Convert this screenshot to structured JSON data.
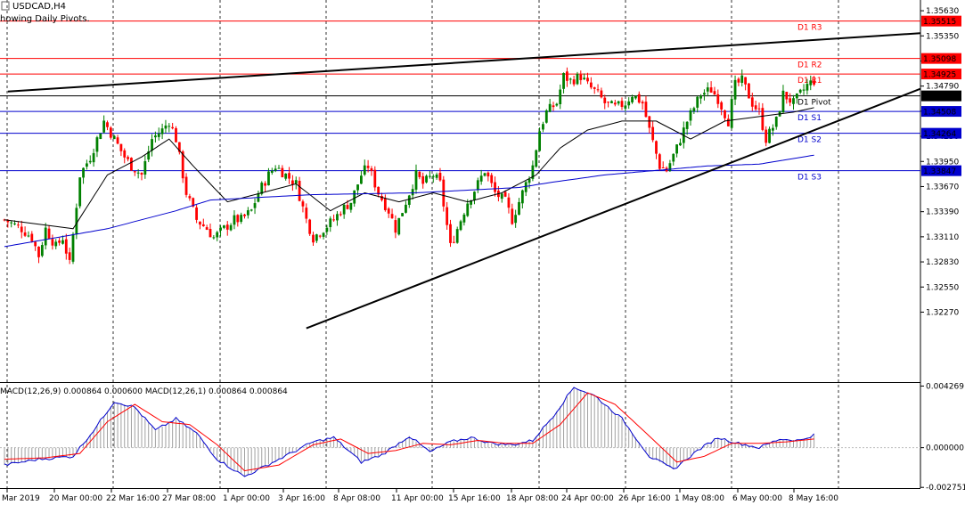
{
  "window": {
    "symbol_label": "USDCAD,H4",
    "indicator_note": "howing Daily Pivots."
  },
  "colors": {
    "bull": "#008000",
    "bear": "#ff0000",
    "resistance": "#ff0000",
    "support": "#0000cd",
    "pivot": "#000000",
    "ma_fast": "#000000",
    "ma_slow": "#0000cd",
    "macd_line": "#0000cd",
    "signal_line": "#ff0000",
    "histogram": "#a0a0a0",
    "trendline": "#000000"
  },
  "chart_data": [
    {
      "type": "candlestick",
      "title": "USDCAD,H4",
      "ylim": [
        1.315,
        1.3573
      ],
      "y_ticks": [
        "1.35630",
        "1.35350",
        "1.35070",
        "1.34790",
        "1.34510",
        "1.34230",
        "1.33950",
        "1.33670",
        "1.33390",
        "1.33110",
        "1.32830",
        "1.32550",
        "1.32270"
      ],
      "x_ticks": [
        "Mar 2019",
        "20 Mar 00:00",
        "22 Mar 16:00",
        "27 Mar 08:00",
        "1 Apr 00:00",
        "3 Apr 16:00",
        "8 Apr 08:00",
        "11 Apr 00:00",
        "15 Apr 16:00",
        "18 Apr 08:00",
        "24 Apr 00:00",
        "26 Apr 16:00",
        "1 May 08:00",
        "6 May 00:00",
        "8 May 16:00"
      ],
      "pivot_levels": [
        {
          "name": "D1 R3",
          "value": 1.35515,
          "label": "1.35515",
          "kind": "resistance"
        },
        {
          "name": "D1 R2",
          "value": 1.35098,
          "label": "1.35098",
          "kind": "resistance"
        },
        {
          "name": "D1 R1",
          "value": 1.34925,
          "label": "1.34925",
          "kind": "resistance"
        },
        {
          "name": "D1 Pivot",
          "value": 1.34681,
          "label": "1.34681",
          "kind": "pivot"
        },
        {
          "name": "D1 S1",
          "value": 1.34508,
          "label": "1.34508",
          "kind": "support"
        },
        {
          "name": "D1 S2",
          "value": 1.34264,
          "label": "1.34264",
          "kind": "support"
        },
        {
          "name": "D1 S3",
          "value": 1.33847,
          "label": "1.33847",
          "kind": "support"
        }
      ],
      "close_waypoints": [
        [
          0,
          1.333
        ],
        [
          5,
          1.332
        ],
        [
          8,
          1.331
        ],
        [
          10,
          1.329
        ],
        [
          12,
          1.332
        ],
        [
          15,
          1.33
        ],
        [
          17,
          1.331
        ],
        [
          19,
          1.328
        ],
        [
          22,
          1.338
        ],
        [
          25,
          1.34
        ],
        [
          27,
          1.342
        ],
        [
          29,
          1.344
        ],
        [
          32,
          1.342
        ],
        [
          35,
          1.34
        ],
        [
          37,
          1.339
        ],
        [
          40,
          1.338
        ],
        [
          43,
          1.342
        ],
        [
          46,
          1.343
        ],
        [
          48,
          1.344
        ],
        [
          50,
          1.342
        ],
        [
          53,
          1.336
        ],
        [
          56,
          1.333
        ],
        [
          59,
          1.332
        ],
        [
          61,
          1.331
        ],
        [
          64,
          1.332
        ],
        [
          67,
          1.333
        ],
        [
          69,
          1.333
        ],
        [
          72,
          1.334
        ],
        [
          74,
          1.336
        ],
        [
          77,
          1.338
        ],
        [
          79,
          1.339
        ],
        [
          82,
          1.338
        ],
        [
          85,
          1.337
        ],
        [
          88,
          1.333
        ],
        [
          90,
          1.331
        ],
        [
          93,
          1.332
        ],
        [
          96,
          1.333
        ],
        [
          98,
          1.334
        ],
        [
          101,
          1.335
        ],
        [
          104,
          1.338
        ],
        [
          106,
          1.339
        ],
        [
          109,
          1.336
        ],
        [
          112,
          1.334
        ],
        [
          114,
          1.332
        ],
        [
          117,
          1.335
        ],
        [
          120,
          1.338
        ],
        [
          122,
          1.337
        ],
        [
          125,
          1.338
        ],
        [
          127,
          1.337
        ],
        [
          130,
          1.33
        ],
        [
          132,
          1.332
        ],
        [
          135,
          1.335
        ],
        [
          138,
          1.337
        ],
        [
          140,
          1.3385
        ],
        [
          143,
          1.336
        ],
        [
          146,
          1.335
        ],
        [
          148,
          1.333
        ],
        [
          151,
          1.336
        ],
        [
          154,
          1.339
        ],
        [
          156,
          1.343
        ],
        [
          158,
          1.345
        ],
        [
          161,
          1.346
        ],
        [
          163,
          1.349
        ],
        [
          165,
          1.3485
        ],
        [
          168,
          1.349
        ],
        [
          170,
          1.348
        ],
        [
          173,
          1.347
        ],
        [
          175,
          1.346
        ],
        [
          178,
          1.3455
        ],
        [
          181,
          1.346
        ],
        [
          183,
          1.347
        ],
        [
          186,
          1.346
        ],
        [
          188,
          1.343
        ],
        [
          191,
          1.339
        ],
        [
          193,
          1.3385
        ],
        [
          196,
          1.341
        ],
        [
          199,
          1.344
        ],
        [
          201,
          1.3455
        ],
        [
          203,
          1.347
        ],
        [
          206,
          1.3475
        ],
        [
          208,
          1.3465
        ],
        [
          211,
          1.344
        ],
        [
          213,
          1.348
        ],
        [
          215,
          1.3485
        ],
        [
          218,
          1.346
        ],
        [
          220,
          1.345
        ],
        [
          222,
          1.342
        ],
        [
          225,
          1.344
        ],
        [
          227,
          1.347
        ],
        [
          230,
          1.346
        ],
        [
          232,
          1.347
        ],
        [
          234,
          1.348
        ],
        [
          236,
          1.3485
        ]
      ],
      "ma_fast_waypoints": [
        [
          0,
          1.333
        ],
        [
          20,
          1.332
        ],
        [
          30,
          1.338
        ],
        [
          40,
          1.34
        ],
        [
          48,
          1.342
        ],
        [
          55,
          1.339
        ],
        [
          65,
          1.335
        ],
        [
          75,
          1.336
        ],
        [
          85,
          1.337
        ],
        [
          95,
          1.334
        ],
        [
          105,
          1.336
        ],
        [
          115,
          1.335
        ],
        [
          125,
          1.336
        ],
        [
          135,
          1.335
        ],
        [
          145,
          1.336
        ],
        [
          155,
          1.338
        ],
        [
          162,
          1.341
        ],
        [
          170,
          1.343
        ],
        [
          180,
          1.344
        ],
        [
          190,
          1.344
        ],
        [
          200,
          1.342
        ],
        [
          210,
          1.344
        ],
        [
          220,
          1.3445
        ],
        [
          230,
          1.345
        ],
        [
          236,
          1.3455
        ]
      ],
      "ma_slow_waypoints": [
        [
          0,
          1.33
        ],
        [
          30,
          1.332
        ],
        [
          50,
          1.334
        ],
        [
          60,
          1.3352
        ],
        [
          90,
          1.3358
        ],
        [
          120,
          1.336
        ],
        [
          150,
          1.3366
        ],
        [
          160,
          1.3372
        ],
        [
          175,
          1.338
        ],
        [
          190,
          1.3385
        ],
        [
          205,
          1.339
        ],
        [
          220,
          1.3392
        ],
        [
          236,
          1.3402
        ]
      ],
      "trendlines": [
        {
          "from": [
            1,
            1.3473
          ],
          "to": [
            267,
            1.3538
          ]
        },
        {
          "from": [
            88,
            1.3209
          ],
          "to": [
            267,
            1.3476
          ]
        }
      ]
    },
    {
      "type": "line",
      "title": "MACD(12,26,9) 0.000864 0.000600 MACD(12,26,1) 0.000864 0.000864",
      "ylim": [
        -0.0028,
        0.00442
      ],
      "y_ticks": [
        "0.004269",
        "0.000000",
        "-0.002751"
      ],
      "macd_waypoints": [
        [
          0,
          -0.0012
        ],
        [
          10,
          -0.0008
        ],
        [
          20,
          -0.0006
        ],
        [
          26,
          0.0012
        ],
        [
          32,
          0.0032
        ],
        [
          38,
          0.0028
        ],
        [
          44,
          0.0012
        ],
        [
          50,
          0.002
        ],
        [
          56,
          0.001
        ],
        [
          62,
          -0.0008
        ],
        [
          70,
          -0.002
        ],
        [
          80,
          -0.0008
        ],
        [
          90,
          0.0004
        ],
        [
          96,
          0.0007
        ],
        [
          104,
          -0.001
        ],
        [
          110,
          -0.0005
        ],
        [
          118,
          0.0008
        ],
        [
          124,
          -0.0003
        ],
        [
          130,
          0.0004
        ],
        [
          136,
          0.0007
        ],
        [
          142,
          0.0003
        ],
        [
          148,
          0.0002
        ],
        [
          154,
          0.0005
        ],
        [
          160,
          0.0022
        ],
        [
          166,
          0.0042
        ],
        [
          172,
          0.0036
        ],
        [
          180,
          0.002
        ],
        [
          188,
          -0.0006
        ],
        [
          195,
          -0.0015
        ],
        [
          202,
          -0.0002
        ],
        [
          208,
          0.0007
        ],
        [
          214,
          0.0003
        ],
        [
          220,
          0.0
        ],
        [
          226,
          0.0006
        ],
        [
          232,
          0.0005
        ],
        [
          236,
          0.0009
        ]
      ],
      "signal_waypoints": [
        [
          0,
          -0.0008
        ],
        [
          12,
          -0.0007
        ],
        [
          22,
          -0.0004
        ],
        [
          30,
          0.0018
        ],
        [
          38,
          0.003
        ],
        [
          46,
          0.0018
        ],
        [
          54,
          0.0016
        ],
        [
          62,
          0.0002
        ],
        [
          70,
          -0.0016
        ],
        [
          80,
          -0.0012
        ],
        [
          90,
          0.0002
        ],
        [
          98,
          0.0006
        ],
        [
          106,
          -0.0004
        ],
        [
          114,
          -0.0002
        ],
        [
          122,
          0.0003
        ],
        [
          130,
          0.0002
        ],
        [
          138,
          0.0005
        ],
        [
          146,
          0.0003
        ],
        [
          154,
          0.0003
        ],
        [
          162,
          0.0016
        ],
        [
          170,
          0.0038
        ],
        [
          178,
          0.003
        ],
        [
          188,
          0.0008
        ],
        [
          196,
          -0.001
        ],
        [
          204,
          -0.0006
        ],
        [
          212,
          0.0003
        ],
        [
          220,
          0.0003
        ],
        [
          228,
          0.0004
        ],
        [
          236,
          0.0006
        ]
      ]
    }
  ]
}
